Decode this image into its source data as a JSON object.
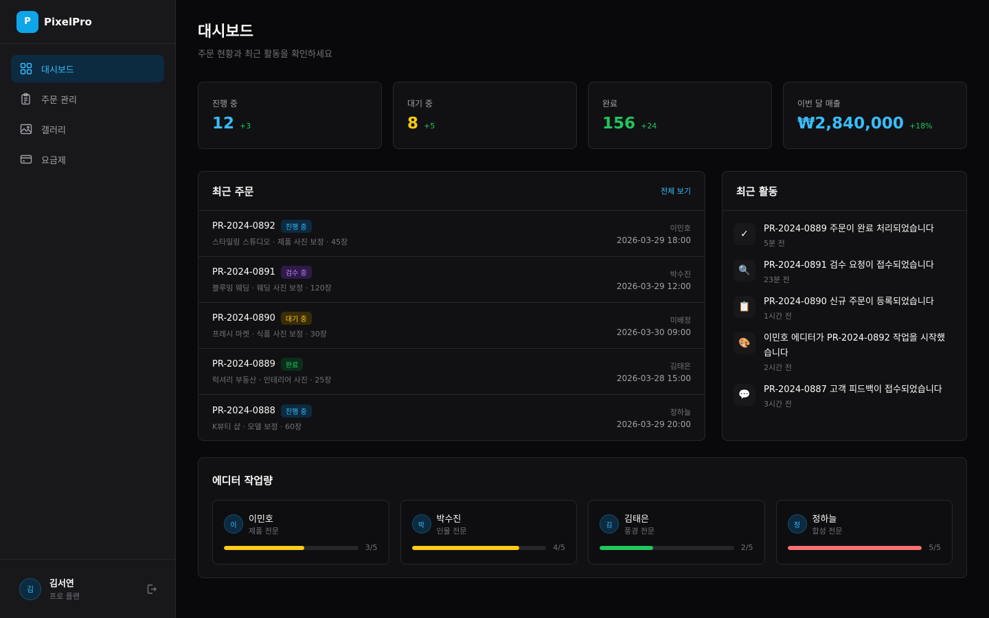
{
  "brand": {
    "logo_letter": "P",
    "name": "PixelPro",
    "accent": "#0ea5e9"
  },
  "sidebar": {
    "items": [
      {
        "label": "대시보드",
        "icon": "grid-icon",
        "active": true
      },
      {
        "label": "주문 관리",
        "icon": "clipboard-icon",
        "active": false
      },
      {
        "label": "갤러리",
        "icon": "image-icon",
        "active": false
      },
      {
        "label": "요금제",
        "icon": "credit-card-icon",
        "active": false
      }
    ]
  },
  "user": {
    "avatar": "김",
    "name": "김서연",
    "plan": "프로 플랜"
  },
  "page": {
    "title": "대시보드",
    "subtitle": "주문 현황과 최근 활동을 확인하세요"
  },
  "stats": [
    {
      "label": "진행 중",
      "value": "12",
      "delta": "+3",
      "color": "#38bdf8"
    },
    {
      "label": "대기 중",
      "value": "8",
      "delta": "+5",
      "color": "#facc15"
    },
    {
      "label": "완료",
      "value": "156",
      "delta": "+24",
      "color": "#22c55e"
    },
    {
      "label": "이번 달 매출",
      "value": "₩2,840,000",
      "delta": "+18%",
      "color": "#38bdf8"
    }
  ],
  "orders": {
    "title": "최근 주문",
    "view_all": "전체 보기",
    "rows": [
      {
        "id": "PR-2024-0892",
        "status": "진행 중",
        "status_type": "progress",
        "meta": "스타일링 스튜디오 · 제품 사진 보정 · 45장",
        "editor": "이민호",
        "date": "2026-03-29 18:00"
      },
      {
        "id": "PR-2024-0891",
        "status": "검수 중",
        "status_type": "review",
        "meta": "블루밍 웨딩 · 웨딩 사진 보정 · 120장",
        "editor": "박수진",
        "date": "2026-03-29 12:00"
      },
      {
        "id": "PR-2024-0890",
        "status": "대기 중",
        "status_type": "waiting",
        "meta": "프레시 마켓 · 식품 사진 보정 · 30장",
        "editor": "미배정",
        "date": "2026-03-30 09:00"
      },
      {
        "id": "PR-2024-0889",
        "status": "완료",
        "status_type": "done",
        "meta": "럭셔리 부동산 · 인테리어 사진 · 25장",
        "editor": "김태은",
        "date": "2026-03-28 15:00"
      },
      {
        "id": "PR-2024-0888",
        "status": "진행 중",
        "status_type": "progress",
        "meta": "K뷰티 샵 · 모델 보정 · 60장",
        "editor": "정하늘",
        "date": "2026-03-29 20:00"
      }
    ]
  },
  "activity": {
    "title": "최근 활동",
    "items": [
      {
        "icon": "check-icon",
        "glyph": "✓",
        "text": "PR-2024-0889 주문이 완료 처리되었습니다",
        "time": "5분 전"
      },
      {
        "icon": "magnifier-icon",
        "glyph": "🔍",
        "text": "PR-2024-0891 검수 요청이 접수되었습니다",
        "time": "23분 전"
      },
      {
        "icon": "clipboard-icon",
        "glyph": "📋",
        "text": "PR-2024-0890 신규 주문이 등록되었습니다",
        "time": "1시간 전"
      },
      {
        "icon": "palette-icon",
        "glyph": "🎨",
        "text": "이민호 에디터가 PR-2024-0892 작업을 시작했습니다",
        "time": "2시간 전"
      },
      {
        "icon": "speech-bubble-icon",
        "glyph": "💬",
        "text": "PR-2024-0887 고객 피드백이 접수되었습니다",
        "time": "3시간 전"
      }
    ]
  },
  "editors": {
    "title": "에디터 작업량",
    "items": [
      {
        "avatar": "이",
        "name": "이민호",
        "spec": "제품 전문",
        "count": "3/5",
        "progress": 0.6,
        "color": "#facc15"
      },
      {
        "avatar": "박",
        "name": "박수진",
        "spec": "인물 전문",
        "count": "4/5",
        "progress": 0.8,
        "color": "#facc15"
      },
      {
        "avatar": "김",
        "name": "김태은",
        "spec": "풍경 전문",
        "count": "2/5",
        "progress": 0.4,
        "color": "#22c55e"
      },
      {
        "avatar": "정",
        "name": "정하늘",
        "spec": "합성 전문",
        "count": "5/5",
        "progress": 1.0,
        "color": "#f87171"
      }
    ]
  }
}
